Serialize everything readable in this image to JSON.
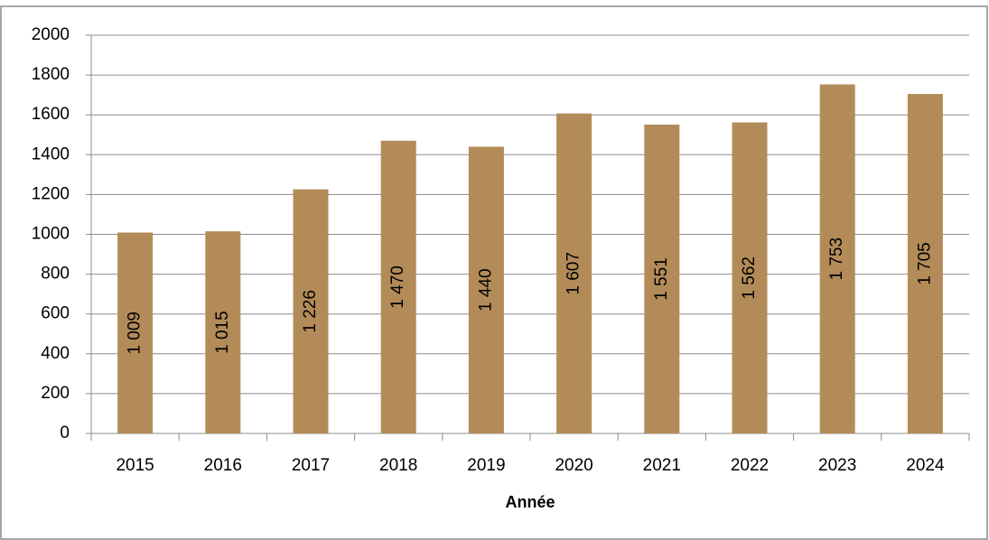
{
  "chart_data": {
    "type": "bar",
    "x_label": "Année",
    "categories": [
      "2015",
      "2016",
      "2017",
      "2018",
      "2019",
      "2020",
      "2021",
      "2022",
      "2023",
      "2024"
    ],
    "values": [
      1009,
      1015,
      1226,
      1470,
      1440,
      1607,
      1551,
      1562,
      1753,
      1705
    ],
    "value_labels": [
      "1 009",
      "1 015",
      "1 226",
      "1 470",
      "1 440",
      "1 607",
      "1 551",
      "1 562",
      "1 753",
      "1 705"
    ],
    "color": "#b38b59",
    "ylim": [
      0,
      2000
    ],
    "yticks": [
      0,
      200,
      400,
      600,
      800,
      1000,
      1200,
      1400,
      1600,
      1800,
      2000
    ],
    "grid": true
  }
}
